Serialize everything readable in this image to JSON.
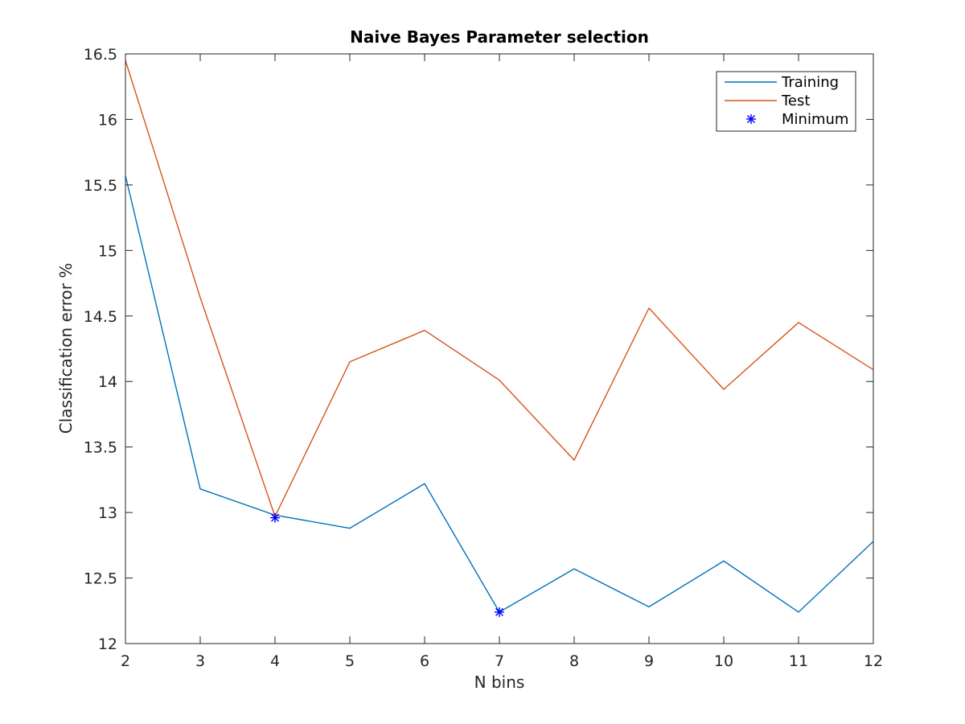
{
  "chart_data": {
    "type": "line",
    "title": "Naive Bayes Parameter selection",
    "xlabel": "N bins",
    "ylabel": "Classification error %",
    "xlim": [
      2,
      12
    ],
    "ylim": [
      12,
      16.5
    ],
    "xticks": [
      "2",
      "3",
      "4",
      "5",
      "6",
      "7",
      "8",
      "9",
      "10",
      "11",
      "12"
    ],
    "yticks": [
      "12",
      "12.5",
      "13",
      "13.5",
      "14",
      "14.5",
      "15",
      "15.5",
      "16",
      "16.5"
    ],
    "x": [
      2,
      3,
      4,
      5,
      6,
      7,
      8,
      9,
      10,
      11,
      12
    ],
    "series": [
      {
        "name": "Training",
        "color": "#0072BD",
        "values": [
          15.57,
          13.18,
          12.98,
          12.88,
          13.22,
          12.24,
          12.57,
          12.28,
          12.63,
          12.24,
          12.78
        ]
      },
      {
        "name": "Test",
        "color": "#D95319",
        "values": [
          16.45,
          14.64,
          12.97,
          14.15,
          14.39,
          14.01,
          13.4,
          14.56,
          13.94,
          14.45,
          14.09
        ]
      }
    ],
    "markers": {
      "name": "Minimum",
      "color": "#0000FF",
      "symbol": "asterisk",
      "points": [
        {
          "x": 4,
          "y": 12.96
        },
        {
          "x": 7,
          "y": 12.24
        }
      ]
    },
    "grid": false,
    "legend_position": "top-right"
  }
}
